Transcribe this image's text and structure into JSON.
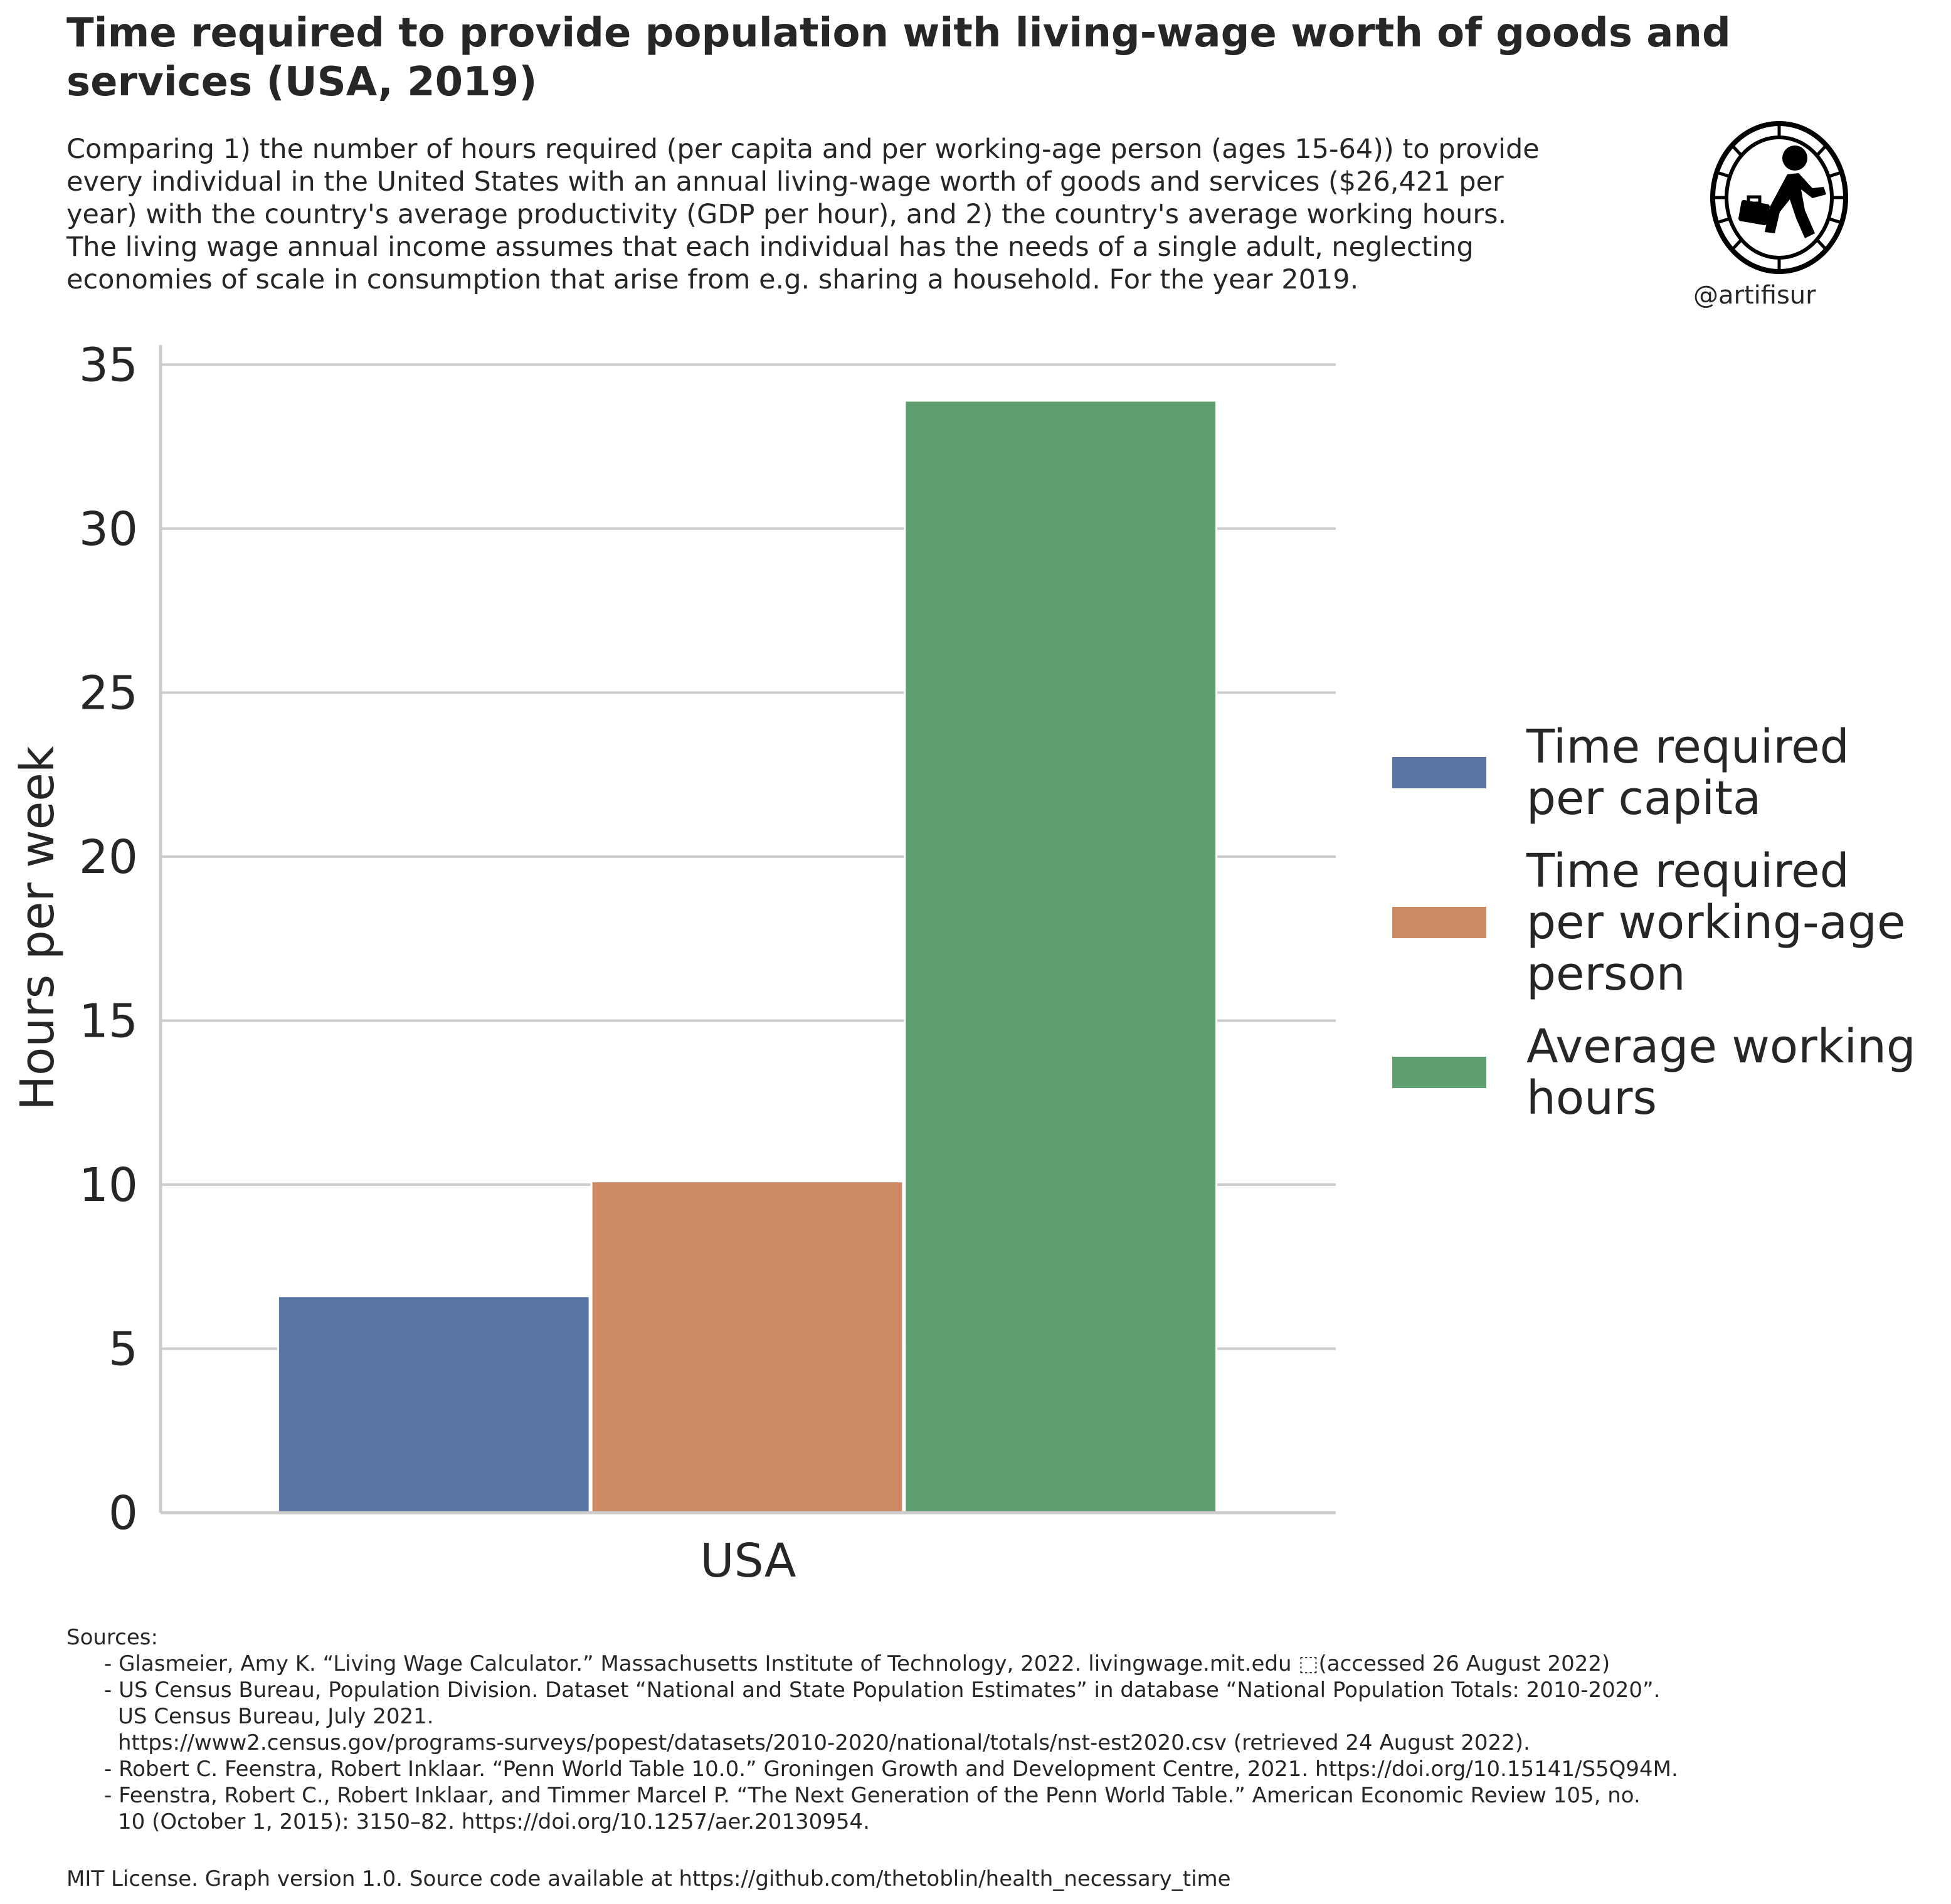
{
  "header": {
    "title": "Time required to provide population with living-wage worth of goods and services (USA, 2019)",
    "subtitle": "Comparing 1) the number of hours required (per capita and per working-age person (ages 15-64)) to provide\nevery individual in the United States with an annual living-wage worth of goods and services ($26,421 per\nyear) with the country's average productivity (GDP per hour), and 2) the country's average working hours.\nThe living wage annual income assumes that each individual has the needs of a single adult, neglecting\neconomies of scale in consumption that arise from e.g. sharing a household. For the year 2019."
  },
  "logo": {
    "icon": "running-person-in-wheel-icon",
    "handle": "@artifisur"
  },
  "chart_data": {
    "type": "bar",
    "categories": [
      "USA"
    ],
    "series": [
      {
        "name": "Time required per capita",
        "values": [
          6.6
        ],
        "color": "#5975a4"
      },
      {
        "name": "Time required per working-age person",
        "values": [
          10.1
        ],
        "color": "#cc8963"
      },
      {
        "name": "Average working hours",
        "values": [
          33.9
        ],
        "color": "#5f9e6e"
      }
    ],
    "title": "",
    "xlabel": "",
    "ylabel": "Hours per week",
    "ylim": [
      0,
      35.6
    ],
    "yticks": [
      0,
      5,
      10,
      15,
      20,
      25,
      30,
      35
    ],
    "grid": "horizontal",
    "legend_position": "right"
  },
  "legend": {
    "items": [
      {
        "label": "Time required per capita",
        "color": "#5975a4"
      },
      {
        "label": "Time required per working-age person",
        "color": "#cc8963"
      },
      {
        "label": "Average working hours",
        "color": "#5f9e6e"
      }
    ]
  },
  "sources": {
    "heading": "Sources:",
    "items": [
      "- Glasmeier, Amy K. “Living Wage Calculator.” Massachusetts Institute of Technology, 2022. livingwage.mit.edu ⬚(accessed 26 August 2022)",
      "- US Census Bureau, Population Division. Dataset “National and State Population Estimates” in database “National Population Totals: 2010-2020”.\nUS Census Bureau, July 2021.\nhttps://www2.census.gov/programs-surveys/popest/datasets/2010-2020/national/totals/nst-est2020.csv (retrieved 24 August 2022).",
      "- Robert C. Feenstra, Robert Inklaar. “Penn World Table 10.0.” Groningen Growth and Development Centre, 2021. https://doi.org/10.15141/S5Q94M.",
      "- Feenstra, Robert C., Robert Inklaar, and Timmer Marcel P. “The Next Generation of the Penn World Table.” American Economic Review 105, no.\n10 (October 1, 2015): 3150–82. https://doi.org/10.1257/aer.20130954."
    ]
  },
  "footer": "MIT License. Graph version 1.0. Source code available at https://github.com/thetoblin/health_necessary_time"
}
